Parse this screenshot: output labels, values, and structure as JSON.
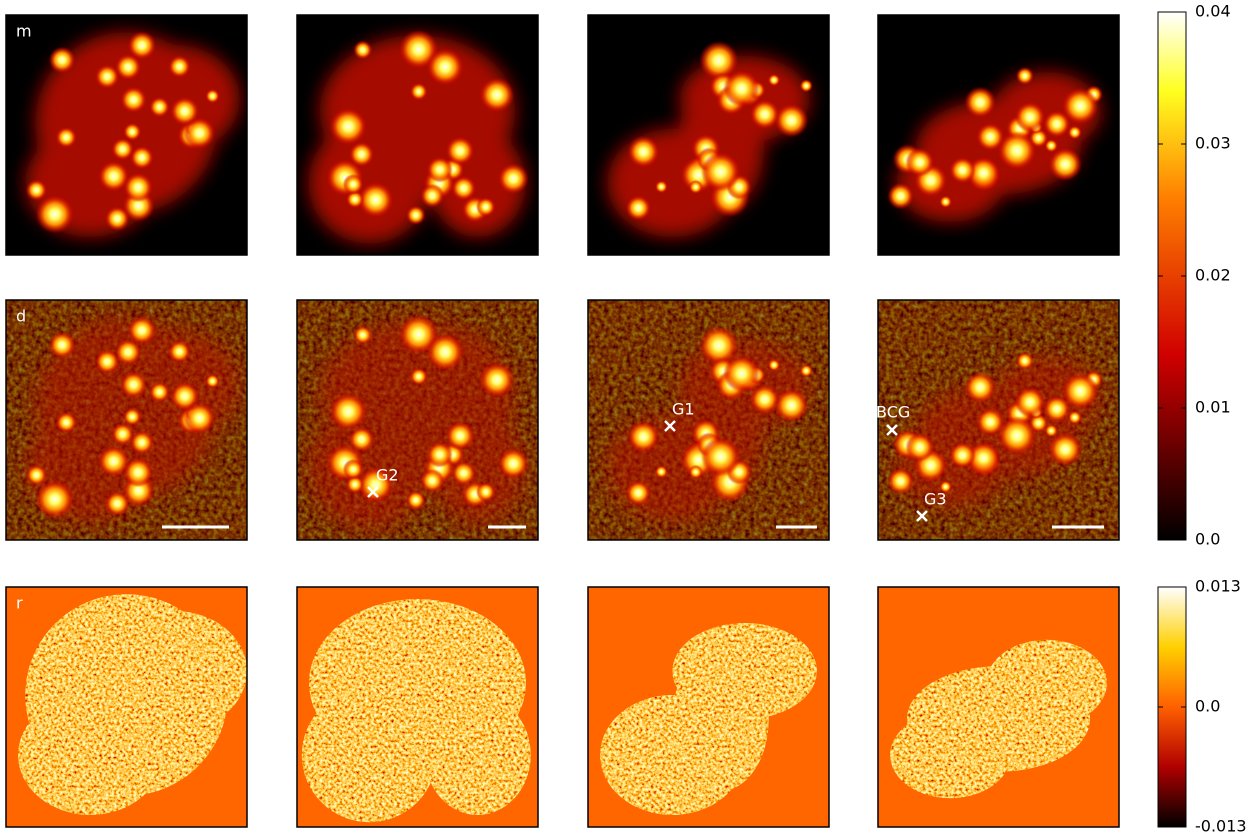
{
  "row_labels": [
    "m",
    "d",
    "r"
  ],
  "markers": [
    {
      "label": "G2"
    },
    {
      "label": "G1"
    },
    {
      "label": "BCG"
    },
    {
      "label": "G3"
    }
  ],
  "colorbars": [
    {
      "lim": [
        0,
        0.04
      ],
      "ticks": [
        {
          "value": 0,
          "label": "0.0"
        },
        0.01,
        0.02,
        0.03,
        0.04
      ]
    },
    {
      "lim": [
        -0.013,
        0.013
      ],
      "ticks": [
        -0.013,
        {
          "value": 0,
          "label": "0.0"
        },
        0.013
      ]
    }
  ]
}
